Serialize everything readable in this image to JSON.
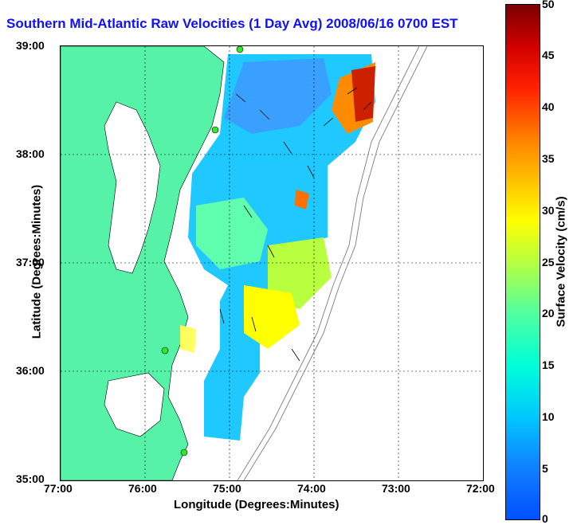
{
  "title": "Southern Mid-Atlantic Raw Velocities (1 Day Avg) 2008/06/16 0700 EST",
  "map": {
    "xlabel": "Longitude (Degrees:Minutes)",
    "ylabel": "Latitude (Degrees:Minutes)",
    "lon_ticks": [
      "77:00",
      "76:00",
      "75:00",
      "74:00",
      "73:00",
      "72:00"
    ],
    "lat_ticks": [
      "39:00",
      "38:00",
      "37:00",
      "36:00",
      "35:00"
    ],
    "land_color": "#55f2a8",
    "water_color": "#ffffff",
    "grid": "dotted"
  },
  "colorbar": {
    "label": "Surface Velocity (cm/s)",
    "ticks": [
      "50",
      "45",
      "40",
      "35",
      "30",
      "25",
      "20",
      "15",
      "10",
      "5",
      "0"
    ],
    "range": [
      0,
      50
    ]
  }
}
